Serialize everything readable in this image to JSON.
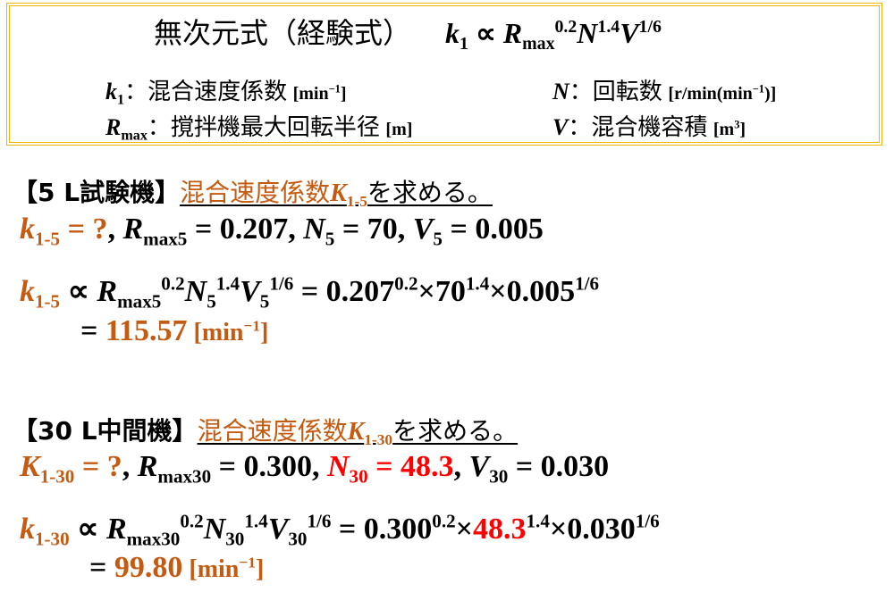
{
  "colors": {
    "accent_orange": "#c55a11",
    "highlight_red": "#ff0000",
    "box_border": "#f2b600"
  },
  "formula_box": {
    "title": "無次元式（経験式）",
    "formula": {
      "k": "k",
      "k_sub": "1",
      "prop": "∝",
      "R": "R",
      "R_sub": "max",
      "R_exp": "0.2",
      "N": "N",
      "N_exp": "1.4",
      "V": "V",
      "V_exp": "1/6"
    },
    "defs": [
      {
        "sym": "k",
        "sub": "1",
        "colon": "：",
        "label": "混合速度係数",
        "unit": "[min",
        "unit_exp": "−1",
        "unit_end": "]"
      },
      {
        "sym": "N",
        "sub": "",
        "colon": "：",
        "label": "回転数",
        "unit": "[r/min(min",
        "unit_exp": "−1",
        "unit_end": ")]"
      },
      {
        "sym": "R",
        "sub": "max",
        "colon": "：",
        "label": "撹拌機最大回転半径",
        "unit": "[m]",
        "unit_exp": "",
        "unit_end": ""
      },
      {
        "sym": "V",
        "sub": "",
        "colon": "：",
        "label": "混合機容積",
        "unit": "[m",
        "unit_exp": "3",
        "unit_end": "]"
      }
    ]
  },
  "section1": {
    "heading": "【5 L試験機】",
    "task_a": "混合速度係数",
    "task_K": "K",
    "task_sub": "1-5",
    "task_b": "を求める。",
    "given": {
      "k": "k",
      "k_sub": "1-5",
      "q": " = ?",
      "sep1": ", ",
      "R": "R",
      "R_sub": "max5",
      "R_val": " = 0.207, ",
      "N": "N",
      "N_sub": "5",
      "N_val": " = 70, ",
      "V": "V",
      "V_sub": "5",
      "V_val": " = 0.005"
    },
    "calc": {
      "k": "k",
      "k_sub": "1-5",
      "prop": " ∝ ",
      "R": "R",
      "R_sub": "max5",
      "R_exp": "0.2",
      "N": "N",
      "N_sub": "5",
      "N_exp": "1.4",
      "V": "V",
      "V_sub": "5",
      "V_exp": "1/6",
      "eq": " = 0.207",
      "e1": "0.2",
      "x1": "×70",
      "e2": "1.4",
      "x2": "×0.005",
      "e3": "1/6"
    },
    "result": {
      "eq": "= ",
      "value": "115.57",
      "unit": " [min",
      "unit_exp": "−1",
      "unit_end": "]"
    }
  },
  "section2": {
    "heading": "【30 L中間機】",
    "task_a": "混合速度係数",
    "task_K": "K",
    "task_sub": "1-30",
    "task_b": "を求める。",
    "given": {
      "k": "K",
      "k_sub": "1-30",
      "q": " = ?",
      "sep1": ", ",
      "R": "R",
      "R_sub": "max30",
      "R_val": " = 0.300, ",
      "N": "N",
      "N_sub": "30",
      "N_val": " = 48.3",
      "sep2": ", ",
      "V": "V",
      "V_sub": "30",
      "V_val": " = 0.030"
    },
    "calc": {
      "k": "k",
      "k_sub": "1-30",
      "prop": " ∝ ",
      "R": "R",
      "R_sub": "max30",
      "R_exp": "0.2",
      "N": "N",
      "N_sub": "30",
      "N_exp": "1.4",
      "V": "V",
      "V_sub": "30",
      "V_exp": "1/6",
      "eq": " = 0.300",
      "e1": "0.2",
      "x1": "×",
      "n": "48.3",
      "e2": "1.4",
      "x2": "×0.030",
      "e3": "1/6"
    },
    "result": {
      "eq": "= ",
      "value": "99.80",
      "unit": " [min",
      "unit_exp": "−1",
      "unit_end": "]"
    }
  }
}
